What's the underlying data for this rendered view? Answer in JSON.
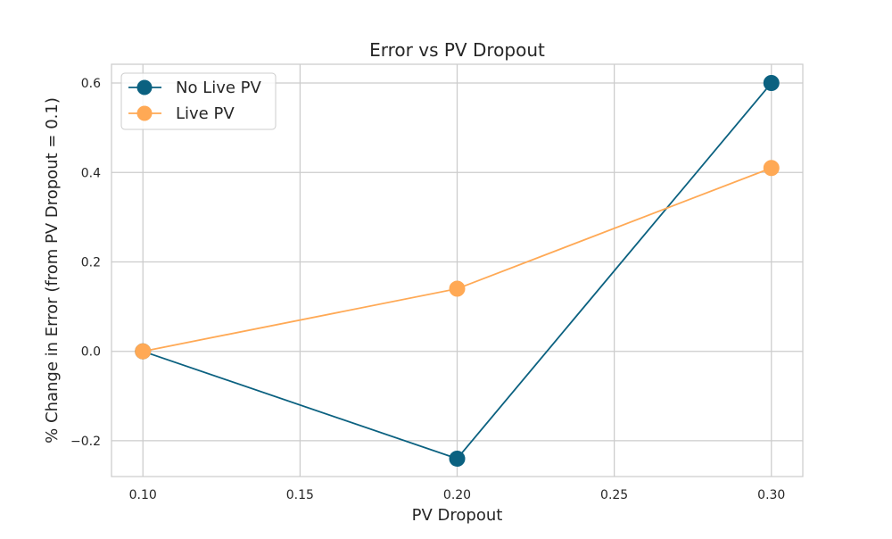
{
  "chart_data": {
    "type": "line",
    "title": "Error vs PV Dropout",
    "xlabel": "PV Dropout",
    "ylabel": "% Change in Error (from PV Dropout = 0.1)",
    "x": [
      0.1,
      0.2,
      0.3
    ],
    "series": [
      {
        "name": "No Live PV",
        "values": [
          0.0,
          -0.24,
          0.6
        ],
        "color": "#0b6180"
      },
      {
        "name": "Live PV",
        "values": [
          0.0,
          0.14,
          0.41
        ],
        "color": "#ffa955"
      }
    ],
    "xticks": [
      0.1,
      0.15,
      0.2,
      0.25,
      0.3
    ],
    "xtick_labels": [
      "0.10",
      "0.15",
      "0.20",
      "0.25",
      "0.30"
    ],
    "yticks": [
      -0.2,
      0.0,
      0.2,
      0.4,
      0.6
    ],
    "ytick_labels": [
      "−0.2",
      "0.0",
      "0.2",
      "0.4",
      "0.6"
    ],
    "xlim": [
      0.09,
      0.31
    ],
    "ylim": [
      -0.28,
      0.642
    ],
    "grid": true,
    "legend_position": "top-left",
    "colors": {
      "grid": "#cccccc",
      "frame": "#cccccc",
      "background": "#ffffff"
    }
  }
}
